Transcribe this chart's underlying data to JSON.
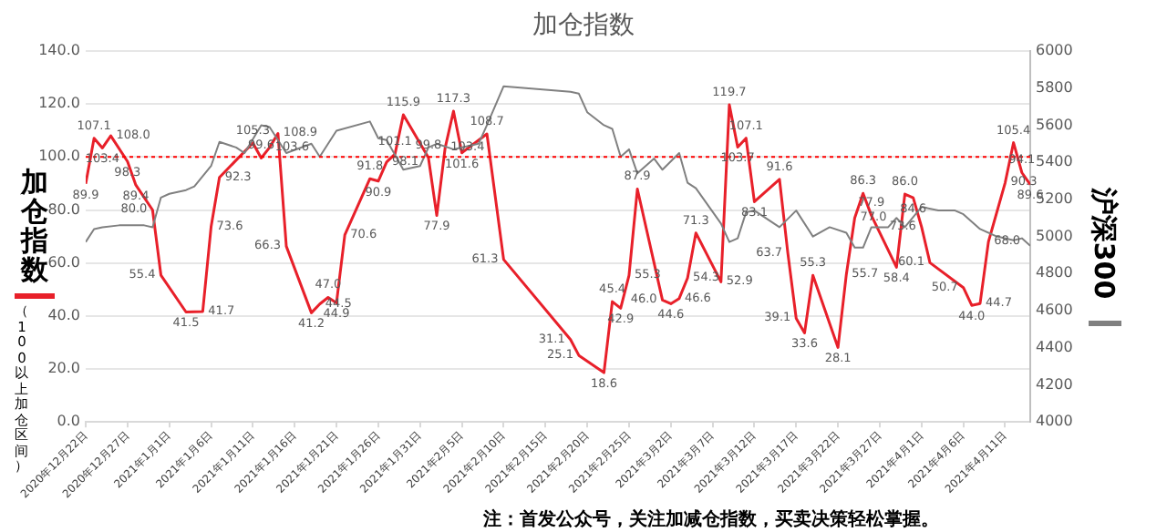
{
  "chart_data": {
    "type": "line",
    "title": "加仓指数",
    "ylabel": "加仓指数",
    "y2label": "沪深300",
    "annotations": [
      "（100以上加仓区间）",
      "注：首发公众号，关注加减仓指数，买卖决策轻松掌握。"
    ],
    "xlim": [
      "2020-12-22",
      "2021-04-14"
    ],
    "xticks": [
      {
        "value": "2020-12-22",
        "label": "2020年12月22日"
      },
      {
        "value": "2020-12-27",
        "label": "2020年12月27日"
      },
      {
        "value": "2021-01-01",
        "label": "2021年1月1日"
      },
      {
        "value": "2021-01-06",
        "label": "2021年1月6日"
      },
      {
        "value": "2021-01-11",
        "label": "2021年1月11日"
      },
      {
        "value": "2021-01-16",
        "label": "2021年1月16日"
      },
      {
        "value": "2021-01-21",
        "label": "2021年1月21日"
      },
      {
        "value": "2021-01-26",
        "label": "2021年1月26日"
      },
      {
        "value": "2021-01-31",
        "label": "2021年1月31日"
      },
      {
        "value": "2021-02-05",
        "label": "2021年2月5日"
      },
      {
        "value": "2021-02-10",
        "label": "2021年2月10日"
      },
      {
        "value": "2021-02-15",
        "label": "2021年2月15日"
      },
      {
        "value": "2021-02-20",
        "label": "2021年2月20日"
      },
      {
        "value": "2021-02-25",
        "label": "2021年2月25日"
      },
      {
        "value": "2021-03-02",
        "label": "2021年3月2日"
      },
      {
        "value": "2021-03-07",
        "label": "2021年3月7日"
      },
      {
        "value": "2021-03-12",
        "label": "2021年3月12日"
      },
      {
        "value": "2021-03-17",
        "label": "2021年3月17日"
      },
      {
        "value": "2021-03-22",
        "label": "2021年3月22日"
      },
      {
        "value": "2021-03-27",
        "label": "2021年3月27日"
      },
      {
        "value": "2021-04-01",
        "label": "2021年4月1日"
      },
      {
        "value": "2021-04-06",
        "label": "2021年4月6日"
      },
      {
        "value": "2021-04-11",
        "label": "2021年4月11日"
      }
    ],
    "ylim": [
      0,
      140
    ],
    "yticks": [
      {
        "value": 0,
        "label": "0.0"
      },
      {
        "value": 20,
        "label": "20.0"
      },
      {
        "value": 40,
        "label": "40.0"
      },
      {
        "value": 60,
        "label": "60.0"
      },
      {
        "value": 80,
        "label": "80.0"
      },
      {
        "value": 100,
        "label": "100.0"
      },
      {
        "value": 120,
        "label": "120.0"
      },
      {
        "value": 140,
        "label": "140.0"
      }
    ],
    "y2lim": [
      4000,
      6000
    ],
    "y2ticks": [
      4000,
      4200,
      4400,
      4600,
      4800,
      5000,
      5200,
      5400,
      5600,
      5800,
      6000
    ],
    "grid": "y",
    "ref_lines": [
      {
        "axis": "y",
        "value": 100,
        "color": "#ff0000",
        "line_style": "dotted"
      }
    ],
    "series": [
      {
        "color": "#808080",
        "axis": "y2",
        "x": [
          "2020-12-22",
          "2020-12-23",
          "2020-12-24",
          "2020-12-26",
          "2020-12-29",
          "2020-12-30",
          "2020-12-31",
          "2021-01-01",
          "2021-01-03",
          "2021-01-04",
          "2021-01-06",
          "2021-01-07",
          "2021-01-09",
          "2021-01-10",
          "2021-01-12",
          "2021-01-13",
          "2021-01-15",
          "2021-01-18",
          "2021-01-19",
          "2021-01-21",
          "2021-01-25",
          "2021-01-26",
          "2021-01-27",
          "2021-01-29",
          "2021-01-31",
          "2021-02-01",
          "2021-02-02",
          "2021-02-04",
          "2021-02-07",
          "2021-02-08",
          "2021-02-10",
          "2021-02-18",
          "2021-02-19",
          "2021-02-20",
          "2021-02-22",
          "2021-02-23",
          "2021-02-24",
          "2021-02-25",
          "2021-02-26",
          "2021-02-28",
          "2021-03-01",
          "2021-03-03",
          "2021-03-04",
          "2021-03-05",
          "2021-03-08",
          "2021-03-09",
          "2021-03-10",
          "2021-03-11",
          "2021-03-12",
          "2021-03-15",
          "2021-03-17",
          "2021-03-19",
          "2021-03-21",
          "2021-03-23",
          "2021-03-24",
          "2021-03-25",
          "2021-03-26",
          "2021-03-28",
          "2021-03-29",
          "2021-03-30",
          "2021-04-01",
          "2021-04-03",
          "2021-04-05",
          "2021-04-06",
          "2021-04-08",
          "2021-04-10",
          "2021-04-12",
          "2021-04-13",
          "2021-04-14"
        ],
        "values": [
          4970,
          5040,
          5050,
          5060,
          5060,
          5050,
          5210,
          5230,
          5250,
          5270,
          5380,
          5510,
          5480,
          5450,
          5600,
          5590,
          5450,
          5500,
          5430,
          5570,
          5620,
          5530,
          5520,
          5360,
          5380,
          5480,
          5500,
          5470,
          5500,
          5600,
          5810,
          5780,
          5770,
          5670,
          5600,
          5580,
          5430,
          5470,
          5340,
          5420,
          5360,
          5450,
          5290,
          5260,
          5070,
          4970,
          4990,
          5130,
          5140,
          5050,
          5140,
          5000,
          5050,
          5020,
          4940,
          4940,
          5050,
          5050,
          5100,
          5050,
          5160,
          5140,
          5140,
          5120,
          5040,
          5000,
          4980,
          4990,
          4950
        ]
      },
      {
        "color": "#e8202a",
        "x": [
          "2020-12-22",
          "2020-12-23",
          "2020-12-24",
          "2020-12-25",
          "2020-12-27",
          "2020-12-28",
          "2020-12-30",
          "2020-12-31",
          "2021-01-03",
          "2021-01-05",
          "2021-01-06",
          "2021-01-07",
          "2021-01-11",
          "2021-01-12",
          "2021-01-13",
          "2021-01-14",
          "2021-01-15",
          "2021-01-18",
          "2021-01-19",
          "2021-01-20",
          "2021-01-21",
          "2021-01-22",
          "2021-01-25",
          "2021-01-26",
          "2021-01-27",
          "2021-01-28",
          "2021-01-29",
          "2021-02-01",
          "2021-02-02",
          "2021-02-03",
          "2021-02-04",
          "2021-02-05",
          "2021-02-08",
          "2021-02-10",
          "2021-02-18",
          "2021-02-19",
          "2021-02-22",
          "2021-02-23",
          "2021-02-24",
          "2021-02-25",
          "2021-02-26",
          "2021-03-01",
          "2021-03-02",
          "2021-03-03",
          "2021-03-04",
          "2021-03-05",
          "2021-03-08",
          "2021-03-09",
          "2021-03-10",
          "2021-03-11",
          "2021-03-12",
          "2021-03-15",
          "2021-03-16",
          "2021-03-17",
          "2021-03-18",
          "2021-03-19",
          "2021-03-22",
          "2021-03-23",
          "2021-03-24",
          "2021-03-25",
          "2021-03-26",
          "2021-03-29",
          "2021-03-30",
          "2021-03-31",
          "2021-04-01",
          "2021-04-02",
          "2021-04-06",
          "2021-04-07",
          "2021-04-08",
          "2021-04-09",
          "2021-04-11",
          "2021-04-12",
          "2021-04-13",
          "2021-04-14"
        ],
        "values": [
          89.9,
          107.1,
          103.4,
          108.0,
          98.3,
          89.4,
          80.0,
          55.4,
          41.5,
          41.7,
          73.6,
          92.3,
          105.3,
          99.6,
          103.6,
          108.9,
          66.3,
          41.2,
          44.5,
          47.0,
          44.9,
          70.6,
          91.8,
          90.9,
          98.1,
          101.1,
          115.9,
          99.8,
          77.9,
          103.4,
          117.3,
          101.6,
          108.7,
          61.3,
          31.1,
          25.1,
          18.6,
          45.4,
          42.9,
          55.3,
          87.9,
          46.0,
          44.6,
          46.6,
          54.3,
          71.3,
          52.9,
          119.7,
          103.7,
          107.1,
          83.1,
          91.6,
          63.7,
          39.1,
          33.6,
          55.3,
          28.1,
          55.7,
          77.0,
          86.3,
          77.9,
          58.4,
          86.0,
          84.6,
          73.6,
          60.1,
          50.7,
          44.0,
          44.7,
          68.0,
          90.3,
          105.4,
          94.1,
          89.6
        ],
        "value_labels": [
          "89.9",
          "107.1",
          "103.4",
          "108.0",
          "98.3",
          "89.4",
          "80.0",
          "55.4",
          "41.5",
          "41.7",
          "73.6",
          "92.3",
          "105.3",
          "99.6",
          "103.6",
          "108.9",
          "66.3",
          "41.2",
          "44.5",
          "47.0",
          "44.9",
          "70.6",
          "91.8",
          "90.9",
          "98.1",
          "101.1",
          "115.9",
          "99.8",
          "77.9",
          "103.4",
          "117.3",
          "101.6",
          "108.7",
          "61.3",
          "31.1",
          "25.1",
          "18.6",
          "45.4",
          "42.9",
          "55.3",
          "87.9",
          "46.0",
          "44.6",
          "46.6",
          "54.3",
          "71.3",
          "52.9",
          "119.7",
          "103.7",
          "107.1",
          "83.1",
          "91.6",
          "63.7",
          "39.1",
          "33.6",
          "55.3",
          "28.1",
          "55.7",
          "77.0",
          "86.3",
          "77.9",
          "58.4",
          "86.0",
          "84.6",
          "73.6",
          "60.1",
          "50.7",
          "44.0",
          "44.7",
          "68.0",
          "90.3",
          "105.4",
          "94.1",
          "89.6"
        ]
      }
    ]
  }
}
